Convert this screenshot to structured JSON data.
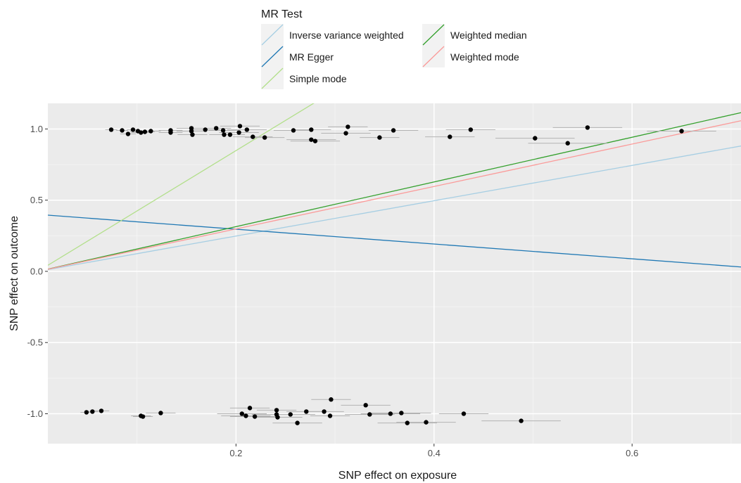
{
  "chart_data": {
    "type": "scatter",
    "xlabel": "SNP effect on exposure",
    "ylabel": "SNP effect on outcome",
    "xlim": [
      0.01,
      0.71
    ],
    "ylim": [
      -1.21,
      1.18
    ],
    "x_ticks": [
      0.2,
      0.4,
      0.6
    ],
    "x_tick_labels": [
      "0.2",
      "0.4",
      "0.6"
    ],
    "y_ticks": [
      1.0,
      0.5,
      0.0,
      -0.5,
      -1.0
    ],
    "y_tick_labels": [
      "1.0",
      "0.5",
      "0.0",
      "-0.5",
      "-1.0"
    ],
    "grid": true,
    "legend": {
      "title": "MR Test",
      "position": "top",
      "entries": [
        {
          "label": "Inverse variance weighted",
          "color": "#a6cee3"
        },
        {
          "label": "MR Egger",
          "color": "#1f78b4"
        },
        {
          "label": "Simple mode",
          "color": "#b2df8a"
        },
        {
          "label": "Weighted median",
          "color": "#33a02c"
        },
        {
          "label": "Weighted mode",
          "color": "#fb9a99"
        }
      ]
    },
    "lines": [
      {
        "name": "Inverse variance weighted",
        "color": "#a6cee3",
        "intercept": 0,
        "slope": 1.24
      },
      {
        "name": "MR Egger",
        "color": "#1f78b4",
        "intercept": 0.4,
        "slope": -0.52
      },
      {
        "name": "Simple mode",
        "color": "#b2df8a",
        "intercept": 0,
        "slope": 4.24
      },
      {
        "name": "Weighted median",
        "color": "#33a02c",
        "intercept": 0,
        "slope": 1.57
      },
      {
        "name": "Weighted mode",
        "color": "#fb9a99",
        "intercept": 0,
        "slope": 1.49
      }
    ],
    "points": [
      {
        "x": 0.074,
        "y": 0.995,
        "se_x": 0.006,
        "se_y": 0.0
      },
      {
        "x": 0.085,
        "y": 0.99,
        "se_x": 0.006,
        "se_y": 0.0
      },
      {
        "x": 0.091,
        "y": 0.965,
        "se_x": 0.008,
        "se_y": 0.0
      },
      {
        "x": 0.096,
        "y": 0.995,
        "se_x": 0.006,
        "se_y": 0.0
      },
      {
        "x": 0.101,
        "y": 0.985,
        "se_x": 0.008,
        "se_y": 0.0
      },
      {
        "x": 0.104,
        "y": 0.975,
        "se_x": 0.01,
        "se_y": 0.0
      },
      {
        "x": 0.108,
        "y": 0.98,
        "se_x": 0.01,
        "se_y": 0.0
      },
      {
        "x": 0.114,
        "y": 0.985,
        "se_x": 0.01,
        "se_y": 0.0
      },
      {
        "x": 0.134,
        "y": 0.99,
        "se_x": 0.012,
        "se_y": 0.0
      },
      {
        "x": 0.134,
        "y": 0.975,
        "se_x": 0.012,
        "se_y": 0.0
      },
      {
        "x": 0.155,
        "y": 1.005,
        "se_x": 0.015,
        "se_y": 0.015
      },
      {
        "x": 0.155,
        "y": 0.985,
        "se_x": 0.015,
        "se_y": 0.0
      },
      {
        "x": 0.156,
        "y": 0.96,
        "se_x": 0.015,
        "se_y": 0.0
      },
      {
        "x": 0.169,
        "y": 0.995,
        "se_x": 0.015,
        "se_y": 0.0
      },
      {
        "x": 0.18,
        "y": 1.005,
        "se_x": 0.015,
        "se_y": 0.0
      },
      {
        "x": 0.187,
        "y": 0.99,
        "se_x": 0.015,
        "se_y": 0.0
      },
      {
        "x": 0.188,
        "y": 0.96,
        "se_x": 0.015,
        "se_y": 0.0
      },
      {
        "x": 0.194,
        "y": 0.96,
        "se_x": 0.015,
        "se_y": 0.0
      },
      {
        "x": 0.204,
        "y": 1.02,
        "se_x": 0.02,
        "se_y": 0.0
      },
      {
        "x": 0.203,
        "y": 0.975,
        "se_x": 0.02,
        "se_y": 0.0
      },
      {
        "x": 0.211,
        "y": 0.995,
        "se_x": 0.02,
        "se_y": 0.0
      },
      {
        "x": 0.217,
        "y": 0.945,
        "se_x": 0.02,
        "se_y": 0.0
      },
      {
        "x": 0.229,
        "y": 0.94,
        "se_x": 0.02,
        "se_y": 0.0
      },
      {
        "x": 0.258,
        "y": 0.99,
        "se_x": 0.02,
        "se_y": 0.0
      },
      {
        "x": 0.276,
        "y": 0.995,
        "se_x": 0.02,
        "se_y": 0.0
      },
      {
        "x": 0.276,
        "y": 0.925,
        "se_x": 0.025,
        "se_y": 0.0
      },
      {
        "x": 0.28,
        "y": 0.915,
        "se_x": 0.025,
        "se_y": 0.0
      },
      {
        "x": 0.311,
        "y": 0.97,
        "se_x": 0.025,
        "se_y": 0.0
      },
      {
        "x": 0.313,
        "y": 1.015,
        "se_x": 0.02,
        "se_y": 0.0
      },
      {
        "x": 0.345,
        "y": 0.94,
        "se_x": 0.02,
        "se_y": 0.0
      },
      {
        "x": 0.359,
        "y": 0.99,
        "se_x": 0.025,
        "se_y": 0.0
      },
      {
        "x": 0.416,
        "y": 0.945,
        "se_x": 0.025,
        "se_y": 0.0
      },
      {
        "x": 0.437,
        "y": 0.995,
        "se_x": 0.025,
        "se_y": 0.0
      },
      {
        "x": 0.502,
        "y": 0.935,
        "se_x": 0.04,
        "se_y": 0.0
      },
      {
        "x": 0.535,
        "y": 0.9,
        "se_x": 0.04,
        "se_y": 0.0
      },
      {
        "x": 0.555,
        "y": 1.01,
        "se_x": 0.035,
        "se_y": 0.015
      },
      {
        "x": 0.65,
        "y": 0.985,
        "se_x": 0.035,
        "se_y": 0.015
      },
      {
        "x": 0.049,
        "y": -0.99,
        "se_x": 0.006,
        "se_y": 0.0
      },
      {
        "x": 0.055,
        "y": -0.985,
        "se_x": 0.006,
        "se_y": 0.0
      },
      {
        "x": 0.064,
        "y": -0.98,
        "se_x": 0.008,
        "se_y": 0.0
      },
      {
        "x": 0.104,
        "y": -1.015,
        "se_x": 0.01,
        "se_y": 0.0
      },
      {
        "x": 0.106,
        "y": -1.02,
        "se_x": 0.01,
        "se_y": 0.0
      },
      {
        "x": 0.124,
        "y": -0.995,
        "se_x": 0.015,
        "se_y": 0.0
      },
      {
        "x": 0.206,
        "y": -1.0,
        "se_x": 0.025,
        "se_y": 0.0
      },
      {
        "x": 0.21,
        "y": -1.015,
        "se_x": 0.025,
        "se_y": 0.0
      },
      {
        "x": 0.214,
        "y": -0.96,
        "se_x": 0.02,
        "se_y": 0.0
      },
      {
        "x": 0.219,
        "y": -1.02,
        "se_x": 0.025,
        "se_y": 0.0
      },
      {
        "x": 0.241,
        "y": -0.975,
        "se_x": 0.02,
        "se_y": 0.0
      },
      {
        "x": 0.241,
        "y": -1.005,
        "se_x": 0.025,
        "se_y": 0.0
      },
      {
        "x": 0.242,
        "y": -1.025,
        "se_x": 0.025,
        "se_y": 0.0
      },
      {
        "x": 0.255,
        "y": -1.005,
        "se_x": 0.025,
        "se_y": 0.0
      },
      {
        "x": 0.262,
        "y": -1.065,
        "se_x": 0.025,
        "se_y": 0.0
      },
      {
        "x": 0.271,
        "y": -0.985,
        "se_x": 0.02,
        "se_y": 0.0
      },
      {
        "x": 0.289,
        "y": -0.985,
        "se_x": 0.02,
        "se_y": 0.0
      },
      {
        "x": 0.295,
        "y": -1.015,
        "se_x": 0.02,
        "se_y": 0.0
      },
      {
        "x": 0.296,
        "y": -0.9,
        "se_x": 0.02,
        "se_y": 0.0
      },
      {
        "x": 0.331,
        "y": -0.94,
        "se_x": 0.025,
        "se_y": 0.0
      },
      {
        "x": 0.335,
        "y": -1.005,
        "se_x": 0.025,
        "se_y": 0.0
      },
      {
        "x": 0.356,
        "y": -1.0,
        "se_x": 0.03,
        "se_y": 0.0
      },
      {
        "x": 0.367,
        "y": -0.995,
        "se_x": 0.03,
        "se_y": 0.0
      },
      {
        "x": 0.373,
        "y": -1.065,
        "se_x": 0.03,
        "se_y": 0.0
      },
      {
        "x": 0.392,
        "y": -1.06,
        "se_x": 0.03,
        "se_y": 0.0
      },
      {
        "x": 0.43,
        "y": -1.0,
        "se_x": 0.025,
        "se_y": 0.015
      },
      {
        "x": 0.488,
        "y": -1.05,
        "se_x": 0.04,
        "se_y": 0.0
      }
    ]
  }
}
